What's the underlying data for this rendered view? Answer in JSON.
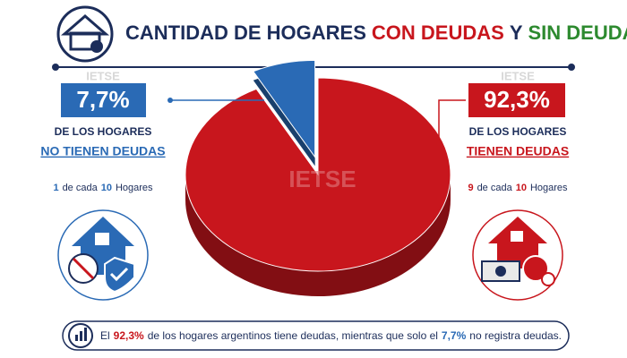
{
  "chart_data": {
    "type": "pie",
    "title": [
      "CANTIDAD DE HOGARES",
      "CON DEUDAS",
      "Y",
      "SIN DEUDAS"
    ],
    "values": [
      7.7,
      92.3
    ],
    "value_labels": [
      "7,7%",
      "92,3%"
    ],
    "colors": [
      "#2a6ab5",
      "#c8161d"
    ],
    "watermark": "IETSE"
  },
  "left_panel": {
    "line1": "DE LOS HOGARES",
    "line2": "NO TIENEN DEUDAS",
    "ratio": [
      "1",
      "de cada",
      "10",
      "Hogares"
    ]
  },
  "right_panel": {
    "line1": "DE LOS HOGARES",
    "line2": "TIENEN DEUDAS",
    "ratio": [
      "9",
      "de cada",
      "10",
      "Hogares"
    ]
  },
  "footer": [
    "El",
    "de los hogares argentinos tiene deudas, mientras que solo el",
    "no registra deudas."
  ]
}
